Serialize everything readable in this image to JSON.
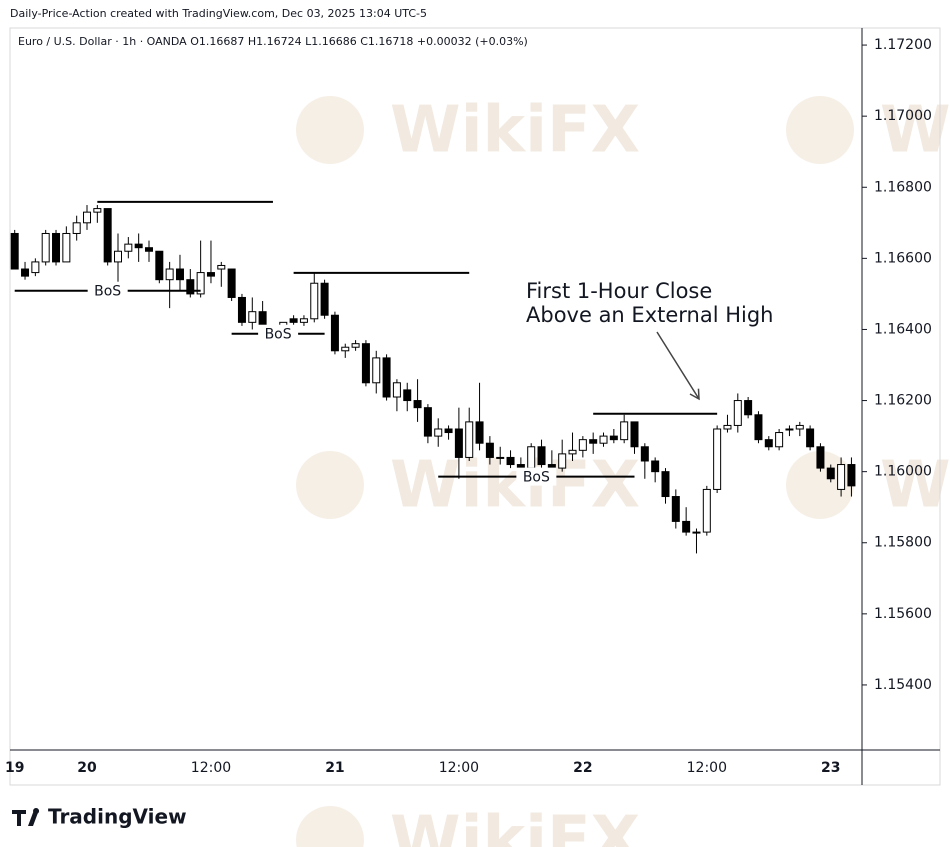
{
  "chart_data": {
    "type": "candlestick",
    "title": "Daily-Price-Action created with TradingView.com, Dec 03, 2025 13:04 UTC-5",
    "subtitle": "Euro / U.S. Dollar · 1h · OANDA  O1.16687  H1.16724  L1.16686  C1.16718  +0.00032 (+0.03%)",
    "brand": "TradingView",
    "watermark": "WikiFX",
    "categories": [
      "19",
      null,
      null,
      null,
      null,
      null,
      null,
      "20",
      null,
      null,
      null,
      null,
      null,
      null,
      null,
      null,
      null,
      null,
      null,
      "12:00",
      null,
      null,
      null,
      null,
      null,
      null,
      null,
      null,
      null,
      null,
      null,
      "21",
      null,
      null,
      null,
      null,
      null,
      null,
      null,
      null,
      null,
      null,
      null,
      "12:00",
      null,
      null,
      null,
      null,
      null,
      null,
      null,
      null,
      null,
      null,
      null,
      "22",
      null,
      null,
      null,
      null,
      null,
      null,
      null,
      null,
      null,
      null,
      null,
      "12:00",
      null,
      null,
      null,
      null,
      null,
      null,
      null,
      null,
      null,
      null,
      null,
      "23",
      null,
      null
    ],
    "open": [
      1.1667,
      1.1657,
      1.1656,
      1.1659,
      1.1667,
      1.1659,
      1.1667,
      1.167,
      1.1673,
      1.1674,
      1.1659,
      1.1662,
      1.1664,
      1.1663,
      1.1662,
      1.1654,
      1.1657,
      1.1654,
      1.165,
      1.1656,
      1.1657,
      1.1657,
      1.1649,
      1.1642,
      1.1645,
      1.1639,
      1.164,
      1.1643,
      1.1642,
      1.1643,
      1.1653,
      1.1644,
      1.1634,
      1.1635,
      1.1636,
      1.1625,
      1.1632,
      1.1621,
      1.1623,
      1.162,
      1.1618,
      1.161,
      1.1612,
      1.1612,
      1.1604,
      1.1614,
      1.1608,
      1.1604,
      1.1604,
      1.1602,
      1.1601,
      1.1607,
      1.1602,
      1.1601,
      1.1605,
      1.1606,
      1.1609,
      1.1608,
      1.161,
      1.1609,
      1.1614,
      1.1607,
      1.1603,
      1.16,
      1.1593,
      1.1586,
      1.1583,
      1.1583,
      1.1595,
      1.1612,
      1.1613,
      1.162,
      1.1616,
      1.1609,
      1.1607,
      1.1612,
      1.1612,
      1.1612,
      1.1607,
      1.1601,
      1.1595,
      1.1602
    ],
    "high": [
      1.1668,
      1.1659,
      1.166,
      1.1668,
      1.1668,
      1.1669,
      1.1672,
      1.1675,
      1.1675,
      1.1674,
      1.1667,
      1.1666,
      1.1667,
      1.1665,
      1.1662,
      1.1659,
      1.1661,
      1.1657,
      1.1665,
      1.1665,
      1.1659,
      1.1657,
      1.165,
      1.1649,
      1.1648,
      1.1641,
      1.1642,
      1.1644,
      1.1644,
      1.1656,
      1.1654,
      1.1645,
      1.1636,
      1.1637,
      1.1637,
      1.1634,
      1.1633,
      1.1626,
      1.1625,
      1.1626,
      1.1619,
      1.1615,
      1.1613,
      1.1618,
      1.1618,
      1.1625,
      1.161,
      1.1607,
      1.1606,
      1.1604,
      1.1608,
      1.1609,
      1.1606,
      1.1609,
      1.1611,
      1.161,
      1.1611,
      1.1611,
      1.1612,
      1.1616,
      1.1614,
      1.1608,
      1.1604,
      1.1601,
      1.1595,
      1.159,
      1.1584,
      1.1596,
      1.1613,
      1.1616,
      1.1622,
      1.1621,
      1.1617,
      1.161,
      1.1612,
      1.1613,
      1.1614,
      1.1613,
      1.1608,
      1.1602,
      1.1604,
      1.1604
    ],
    "low": [
      1.1657,
      1.1654,
      1.1655,
      1.1658,
      1.1658,
      1.1659,
      1.1665,
      1.1668,
      1.167,
      1.1658,
      1.1653,
      1.166,
      1.1659,
      1.1659,
      1.1653,
      1.1646,
      1.1651,
      1.1649,
      1.1649,
      1.1653,
      1.1652,
      1.1648,
      1.1641,
      1.164,
      1.1637,
      1.1638,
      1.1639,
      1.1641,
      1.1641,
      1.1642,
      1.1643,
      1.1633,
      1.1632,
      1.1634,
      1.1624,
      1.1622,
      1.162,
      1.1617,
      1.1617,
      1.1614,
      1.1608,
      1.1607,
      1.1609,
      1.1598,
      1.1603,
      1.1606,
      1.1602,
      1.1602,
      1.1601,
      1.1599,
      1.16,
      1.1601,
      1.16,
      1.16,
      1.1603,
      1.1604,
      1.1605,
      1.1607,
      1.1608,
      1.1608,
      1.1605,
      1.1598,
      1.1597,
      1.1591,
      1.1584,
      1.1582,
      1.1577,
      1.1582,
      1.1594,
      1.1611,
      1.1611,
      1.1615,
      1.1608,
      1.1606,
      1.1606,
      1.161,
      1.161,
      1.1606,
      1.16,
      1.1597,
      1.1593,
      1.1593
    ],
    "close": [
      1.1657,
      1.1655,
      1.1659,
      1.1667,
      1.1659,
      1.1667,
      1.167,
      1.1673,
      1.1674,
      1.1659,
      1.1662,
      1.1664,
      1.1663,
      1.1662,
      1.1654,
      1.1657,
      1.1654,
      1.165,
      1.1656,
      1.1655,
      1.1658,
      1.1649,
      1.1642,
      1.1645,
      1.1639,
      1.164,
      1.1642,
      1.1642,
      1.1643,
      1.1653,
      1.1644,
      1.1634,
      1.1635,
      1.1636,
      1.1625,
      1.1632,
      1.1621,
      1.1625,
      1.162,
      1.1618,
      1.161,
      1.1612,
      1.1611,
      1.1604,
      1.1614,
      1.1608,
      1.1604,
      1.1604,
      1.1602,
      1.1601,
      1.1607,
      1.1602,
      1.1601,
      1.1605,
      1.1606,
      1.1609,
      1.1608,
      1.161,
      1.1609,
      1.1614,
      1.1607,
      1.1603,
      1.16,
      1.1593,
      1.1586,
      1.1583,
      1.1583,
      1.1595,
      1.1612,
      1.1613,
      1.162,
      1.1616,
      1.1609,
      1.1607,
      1.1611,
      1.1612,
      1.1613,
      1.1607,
      1.1601,
      1.1598,
      1.1602,
      1.1596
    ],
    "up_color": "#ffffff",
    "down_color": "#000000",
    "ylim": [
      1.15217,
      1.17248
    ],
    "yticks": [
      {
        "value": 1.172,
        "label": "1.17200"
      },
      {
        "value": 1.17,
        "label": "1.17000"
      },
      {
        "value": 1.168,
        "label": "1.16800"
      },
      {
        "value": 1.166,
        "label": "1.16600"
      },
      {
        "value": 1.164,
        "label": "1.16400"
      },
      {
        "value": 1.162,
        "label": "1.16200"
      },
      {
        "value": 1.16,
        "label": "1.16000"
      },
      {
        "value": 1.158,
        "label": "1.15800"
      },
      {
        "value": 1.156,
        "label": "1.15600"
      },
      {
        "value": 1.154,
        "label": "1.15400"
      }
    ],
    "levels": [
      {
        "value": 1.16759,
        "from": 8,
        "to": 25
      },
      {
        "value": 1.16509,
        "from": 0,
        "to": 18,
        "label": "BoS"
      },
      {
        "value": 1.16559,
        "from": 27,
        "to": 44
      },
      {
        "value": 1.16388,
        "from": 21,
        "to": 30,
        "label": "BoS"
      },
      {
        "value": 1.16163,
        "from": 56,
        "to": 68
      },
      {
        "value": 1.15986,
        "from": 41,
        "to": 60,
        "label": "BoS"
      }
    ],
    "annotation": [
      "First 1-Hour Close",
      "Above an External High"
    ]
  }
}
